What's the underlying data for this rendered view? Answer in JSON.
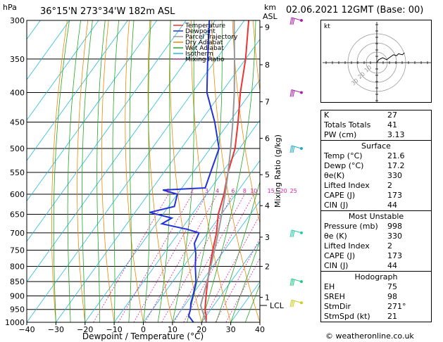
{
  "header": {
    "units_hpa": "hPa",
    "location": "36°15'N  273°34'W  182m  ASL",
    "units_km": "km",
    "units_asl": "ASL",
    "datetime": "02.06.2021  12GMT  (Base: 00)"
  },
  "footer": {
    "credit": "© weatheronline.co.uk"
  },
  "colors": {
    "temperature": "#ee3333",
    "dewpoint": "#2233dd",
    "parcel": "#999999",
    "dry_adiabat": "#ee8800",
    "wet_adiabat": "#22aa22",
    "isotherm": "#22bbdd",
    "mixing_ratio": "#dd22aa"
  },
  "legend": [
    {
      "label": "Temperature",
      "key": "temperature",
      "dash": ""
    },
    {
      "label": "Dewpoint",
      "key": "dewpoint",
      "dash": ""
    },
    {
      "label": "Parcel Trajectory",
      "key": "parcel",
      "dash": ""
    },
    {
      "label": "Dry Adiabat",
      "key": "dry_adiabat",
      "dash": ""
    },
    {
      "label": "Wet Adiabat",
      "key": "wet_adiabat",
      "dash": ""
    },
    {
      "label": "Isotherm",
      "key": "isotherm",
      "dash": ""
    },
    {
      "label": "Mixing Ratio",
      "key": "mixing_ratio",
      "dash": "2,2"
    }
  ],
  "chart_data": {
    "type": "line",
    "title": "",
    "xlabel": "Dewpoint / Temperature (°C)",
    "ylabel_right": "Mixing Ratio (g/kg)",
    "xlim": [
      -40,
      40
    ],
    "ylim_hpa": [
      1000,
      300
    ],
    "log_pressure_axis": true,
    "x_ticks": [
      -40,
      -30,
      -20,
      -10,
      0,
      10,
      20,
      30,
      40
    ],
    "x_tick_labels": [
      "−40",
      "−30",
      "−20",
      "−10",
      "0",
      "10",
      "20",
      "30",
      "40"
    ],
    "pressure_ticks": [
      300,
      350,
      400,
      450,
      500,
      550,
      600,
      650,
      700,
      750,
      800,
      850,
      900,
      950,
      1000
    ],
    "pressure_tick_labels": [
      "300",
      "350",
      "400",
      "450",
      "500",
      "550",
      "600",
      "650",
      "700",
      "750",
      "800",
      "850",
      "900",
      "950",
      "1000"
    ],
    "km_ticks": [
      {
        "label": "9",
        "p": 308
      },
      {
        "label": "8",
        "p": 358
      },
      {
        "label": "7",
        "p": 415
      },
      {
        "label": "6",
        "p": 480
      },
      {
        "label": "5",
        "p": 555
      },
      {
        "label": "4",
        "p": 628
      },
      {
        "label": "3",
        "p": 712
      },
      {
        "label": "2",
        "p": 800
      },
      {
        "label": "1",
        "p": 905
      }
    ],
    "lcl_label": "LCL",
    "lcl_pressure": 935,
    "mixing_ratio_labels": [
      {
        "label": "1",
        "v": 1
      },
      {
        "label": "2",
        "v": 2
      },
      {
        "label": "3",
        "v": 3
      },
      {
        "label": "4",
        "v": 4
      },
      {
        "label": "6",
        "v": 6
      },
      {
        "label": "8",
        "v": 8
      },
      {
        "label": "10",
        "v": 10
      },
      {
        "label": "15",
        "v": 15
      },
      {
        "label": "20",
        "v": 20
      },
      {
        "label": "25",
        "v": 25
      }
    ],
    "series": [
      {
        "name": "Temperature",
        "color_key": "temperature",
        "points": [
          {
            "p": 1000,
            "t": 21.6
          },
          {
            "p": 975,
            "t": 20.0
          },
          {
            "p": 950,
            "t": 18.0
          },
          {
            "p": 925,
            "t": 16.5
          },
          {
            "p": 900,
            "t": 15.0
          },
          {
            "p": 850,
            "t": 12.0
          },
          {
            "p": 800,
            "t": 9.0
          },
          {
            "p": 750,
            "t": 6.0
          },
          {
            "p": 700,
            "t": 3.0
          },
          {
            "p": 650,
            "t": -1.0
          },
          {
            "p": 600,
            "t": -4.0
          },
          {
            "p": 550,
            "t": -8.0
          },
          {
            "p": 500,
            "t": -11.5
          },
          {
            "p": 450,
            "t": -17.0
          },
          {
            "p": 400,
            "t": -23.5
          },
          {
            "p": 350,
            "t": -30.0
          },
          {
            "p": 300,
            "t": -38.5
          }
        ]
      },
      {
        "name": "Dewpoint",
        "color_key": "dewpoint",
        "points": [
          {
            "p": 1000,
            "t": 17.2
          },
          {
            "p": 975,
            "t": 14.0
          },
          {
            "p": 950,
            "t": 13.0
          },
          {
            "p": 925,
            "t": 11.5
          },
          {
            "p": 900,
            "t": 10.5
          },
          {
            "p": 850,
            "t": 8.0
          },
          {
            "p": 800,
            "t": 4.0
          },
          {
            "p": 760,
            "t": 1.0
          },
          {
            "p": 730,
            "t": -2.0
          },
          {
            "p": 700,
            "t": -3.0
          },
          {
            "p": 690,
            "t": -8.0
          },
          {
            "p": 675,
            "t": -18.0
          },
          {
            "p": 660,
            "t": -16.0
          },
          {
            "p": 645,
            "t": -25.0
          },
          {
            "p": 630,
            "t": -18.0
          },
          {
            "p": 600,
            "t": -20.0
          },
          {
            "p": 590,
            "t": -26.0
          },
          {
            "p": 585,
            "t": -12.0
          },
          {
            "p": 550,
            "t": -14.0
          },
          {
            "p": 500,
            "t": -17.0
          },
          {
            "p": 450,
            "t": -25.0
          },
          {
            "p": 400,
            "t": -35.0
          },
          {
            "p": 350,
            "t": -43.0
          },
          {
            "p": 300,
            "t": -52.0
          }
        ]
      },
      {
        "name": "Parcel Trajectory",
        "color_key": "parcel",
        "points": [
          {
            "p": 1000,
            "t": 21.6
          },
          {
            "p": 935,
            "t": 15.5
          },
          {
            "p": 900,
            "t": 14.0
          },
          {
            "p": 850,
            "t": 11.8
          },
          {
            "p": 800,
            "t": 9.3
          },
          {
            "p": 750,
            "t": 6.6
          },
          {
            "p": 700,
            "t": 3.6
          },
          {
            "p": 650,
            "t": 0.2
          },
          {
            "p": 600,
            "t": -3.6
          },
          {
            "p": 550,
            "t": -8.0
          },
          {
            "p": 500,
            "t": -13.0
          },
          {
            "p": 450,
            "t": -18.8
          },
          {
            "p": 400,
            "t": -25.6
          },
          {
            "p": 350,
            "t": -33.8
          },
          {
            "p": 300,
            "t": -43.5
          }
        ]
      }
    ],
    "wind_barbs": [
      {
        "p": 300,
        "label": "300 hPa"
      },
      {
        "p": 400,
        "label": "400 hPa"
      },
      {
        "p": 500,
        "label": "500 hPa"
      },
      {
        "p": 700,
        "label": "700 hPa"
      },
      {
        "p": 850,
        "label": "850 hPa"
      },
      {
        "p": 925,
        "label": "925 hPa"
      }
    ]
  },
  "hodograph": {
    "unit": "kt",
    "ring_labels": [
      "10",
      "20",
      "30"
    ],
    "trace": [
      {
        "u": 0,
        "v": 0
      },
      {
        "u": 2,
        "v": 3
      },
      {
        "u": 6,
        "v": 5
      },
      {
        "u": 10,
        "v": 3
      },
      {
        "u": 14,
        "v": 6
      },
      {
        "u": 17,
        "v": 8
      },
      {
        "u": 20,
        "v": 7
      },
      {
        "u": 22,
        "v": 9
      },
      {
        "u": 26,
        "v": 8
      },
      {
        "u": 28,
        "v": 10
      }
    ]
  },
  "indices": {
    "k": {
      "label": "K",
      "value": "27"
    },
    "tt": {
      "label": "Totals Totals",
      "value": "41"
    },
    "pw": {
      "label": "PW (cm)",
      "value": "3.13"
    }
  },
  "surface": {
    "title": "Surface",
    "rows": [
      {
        "label": "Temp (°C)",
        "value": "21.6"
      },
      {
        "label": "Dewp (°C)",
        "value": "17.2"
      },
      {
        "label": "θe(K)",
        "value": "330"
      },
      {
        "label": "Lifted Index",
        "value": "2"
      },
      {
        "label": "CAPE (J)",
        "value": "173"
      },
      {
        "label": "CIN (J)",
        "value": "44"
      }
    ]
  },
  "most_unstable": {
    "title": "Most Unstable",
    "rows": [
      {
        "label": "Pressure (mb)",
        "value": "998"
      },
      {
        "label": "θe (K)",
        "value": "330"
      },
      {
        "label": "Lifted Index",
        "value": "2"
      },
      {
        "label": "CAPE (J)",
        "value": "173"
      },
      {
        "label": "CIN (J)",
        "value": "44"
      }
    ]
  },
  "hodograph_table": {
    "title": "Hodograph",
    "rows": [
      {
        "label": "EH",
        "value": "75"
      },
      {
        "label": "SREH",
        "value": "98"
      },
      {
        "label": "StmDir",
        "value": "271°"
      },
      {
        "label": "StmSpd (kt)",
        "value": "21"
      }
    ]
  }
}
